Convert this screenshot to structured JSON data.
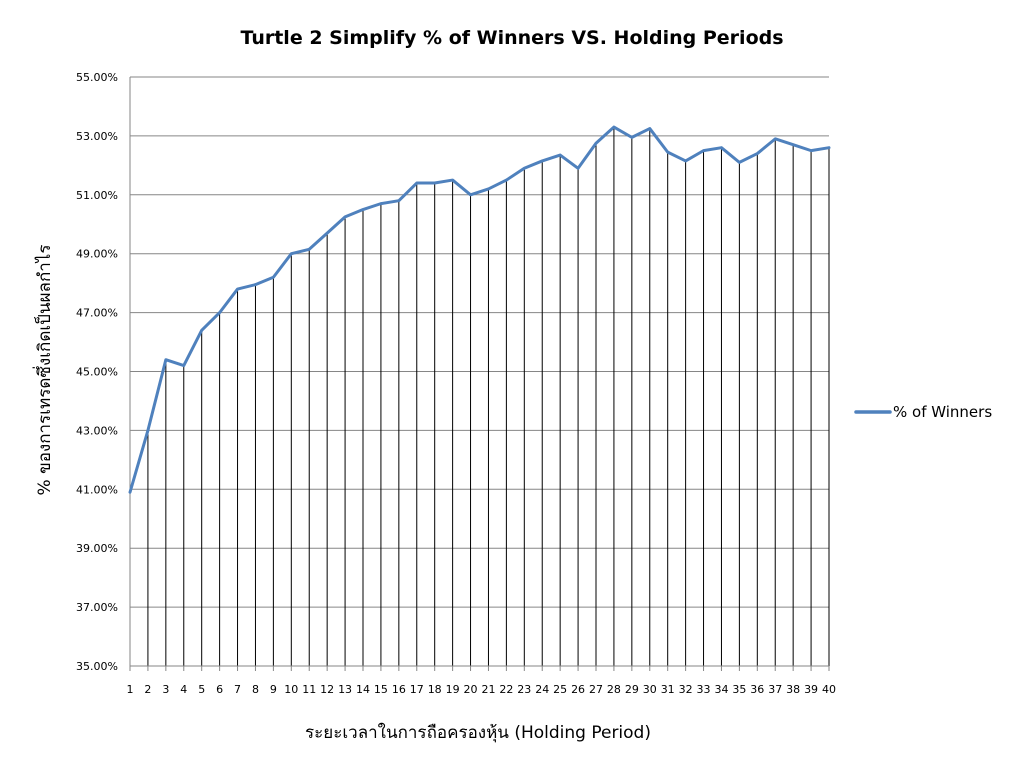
{
  "chart_data": {
    "type": "line",
    "title": "Turtle 2 Simplify % of Winners VS. Holding Periods",
    "xlabel": "ระยะเวลาในการถือครองหุ้น (Holding Period)",
    "ylabel": "% ของการเทรดซึ่งเกิดเป็นผลกำไร",
    "ylim": [
      35,
      55
    ],
    "yticks": [
      35,
      37,
      39,
      41,
      43,
      45,
      47,
      49,
      51,
      53,
      55
    ],
    "ytick_labels": [
      "35.00%",
      "37.00%",
      "39.00%",
      "41.00%",
      "43.00%",
      "45.00%",
      "47.00%",
      "49.00%",
      "51.00%",
      "53.00%",
      "55.00%"
    ],
    "categories": [
      "1",
      "2",
      "3",
      "4",
      "5",
      "6",
      "7",
      "8",
      "9",
      "10",
      "11",
      "12",
      "13",
      "14",
      "15",
      "16",
      "17",
      "18",
      "19",
      "20",
      "21",
      "22",
      "23",
      "24",
      "25",
      "26",
      "27",
      "28",
      "29",
      "30",
      "31",
      "32",
      "33",
      "34",
      "35",
      "36",
      "37",
      "38",
      "39",
      "40"
    ],
    "series": [
      {
        "name": "% of Winners",
        "color": "#4f81bd",
        "values": [
          40.9,
          43.0,
          45.4,
          45.2,
          46.4,
          47.0,
          47.8,
          47.95,
          48.2,
          49.0,
          49.15,
          49.7,
          50.25,
          50.5,
          50.7,
          50.8,
          51.4,
          51.4,
          51.5,
          51.0,
          51.2,
          51.5,
          51.9,
          52.15,
          52.35,
          51.9,
          52.75,
          53.3,
          52.95,
          53.25,
          52.45,
          52.15,
          52.5,
          52.6,
          52.1,
          52.4,
          52.9,
          52.7,
          52.5,
          52.6
        ]
      }
    ],
    "grid": {
      "horizontal": true,
      "vertical_drop_lines": true
    },
    "legend": {
      "position": "right"
    }
  }
}
